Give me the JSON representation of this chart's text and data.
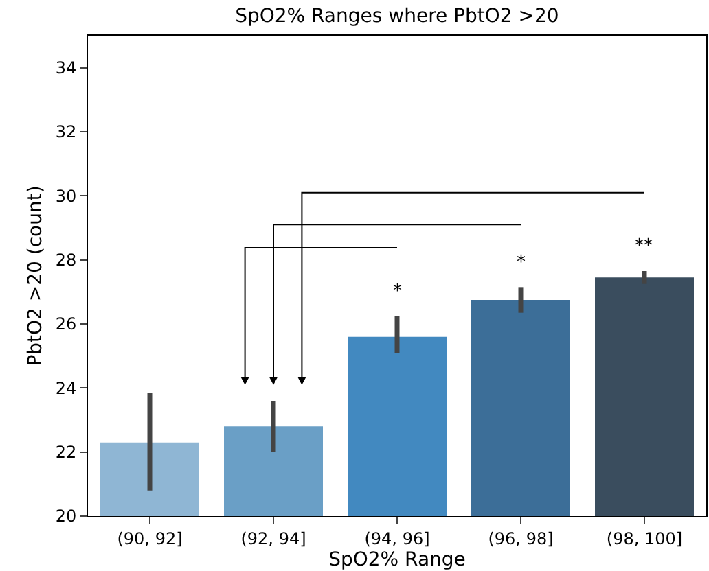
{
  "chart_data": {
    "type": "bar",
    "title": "SpO2% Ranges where PbtO2 >20",
    "xlabel": "SpO2% Range",
    "ylabel": "PbtO2 >20 (count)",
    "categories": [
      "(90, 92]",
      "(92, 94]",
      "(94, 96]",
      "(96, 98]",
      "(98, 100]"
    ],
    "values": [
      22.3,
      22.8,
      25.6,
      26.75,
      27.45
    ],
    "colors": [
      "#8fb6d4",
      "#6a9fc6",
      "#4289c0",
      "#3c6e98",
      "#3a4d5e"
    ],
    "errors": [
      [
        20.8,
        23.85
      ],
      [
        22.0,
        23.6
      ],
      [
        25.1,
        26.25
      ],
      [
        26.35,
        27.15
      ],
      [
        27.25,
        27.65
      ]
    ],
    "ylim": [
      20,
      35
    ],
    "yticks": [
      20,
      22,
      24,
      26,
      28,
      30,
      32,
      34
    ],
    "annotations": [
      "*",
      "*",
      "**"
    ]
  }
}
